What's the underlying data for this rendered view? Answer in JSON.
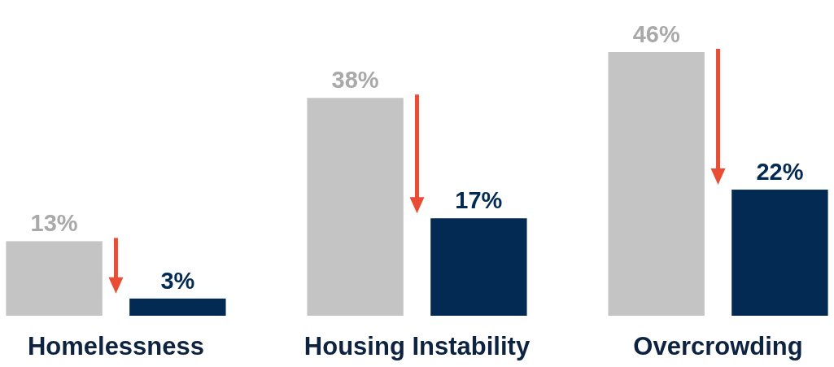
{
  "chart_data": {
    "type": "bar",
    "categories": [
      "Homelessness",
      "Housing Instability",
      "Overcrowding"
    ],
    "series": [
      {
        "color": "#c4c4c4",
        "values": [
          13,
          38,
          46
        ],
        "value_labels": [
          "13%",
          "38%",
          "46%"
        ]
      },
      {
        "color": "#022a52",
        "values": [
          3,
          17,
          22
        ],
        "value_labels": [
          "3%",
          "17%",
          "22%"
        ]
      }
    ]
  }
}
